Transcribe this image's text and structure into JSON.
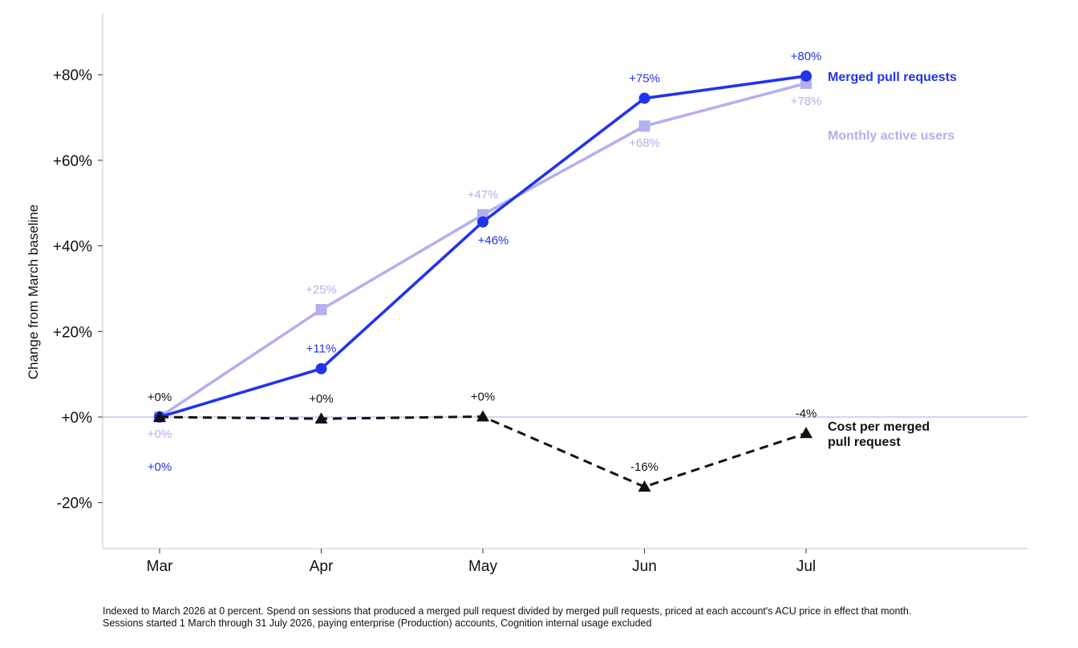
{
  "chart_data": {
    "type": "line",
    "ylabel": "Change from March baseline",
    "xlabel": "",
    "categories": [
      "Mar",
      "Apr",
      "May",
      "Jun",
      "Jul"
    ],
    "ylim": [
      -30,
      92
    ],
    "y_ticks": [
      -20,
      0,
      20,
      40,
      60,
      80
    ],
    "y_tick_labels": [
      "-20%",
      "+0%",
      "+20%",
      "+40%",
      "+60%",
      "+80%"
    ],
    "grid": false,
    "zero_line": true,
    "series": [
      {
        "name": "Merged pull requests",
        "color": "#2233ee",
        "marker": "circle",
        "line_style": "solid",
        "values": [
          0,
          11.3,
          45.6,
          74.5,
          79.7
        ],
        "labels": [
          "+0%",
          "+11%",
          "+46%",
          "+75%",
          "+80%"
        ]
      },
      {
        "name": "Monthly active users",
        "color": "#b3b0ee",
        "marker": "square",
        "line_style": "solid",
        "values": [
          0,
          25.1,
          47.3,
          68.0,
          78.0
        ],
        "labels": [
          "+0%",
          "+25%",
          "+47%",
          "+68%",
          "+78%"
        ]
      },
      {
        "name": "Cost per merged pull request",
        "name_lines": [
          "Cost per merged",
          "pull request"
        ],
        "color": "#111111",
        "marker": "triangle",
        "line_style": "dashed",
        "values": [
          0,
          -0.4,
          0.1,
          -16.3,
          -3.8
        ],
        "labels": [
          "+0%",
          "+0%",
          "+0%",
          "-16%",
          "-4%"
        ]
      }
    ]
  },
  "footnote": {
    "line1": "Indexed to March 2026 at 0 percent. Spend on sessions that produced a merged pull request divided by merged pull requests, priced at each account's ACU price in effect that month.",
    "line2": "Sessions started 1 March through 31 July 2026, paying enterprise (Production) accounts, Cognition internal usage excluded"
  }
}
